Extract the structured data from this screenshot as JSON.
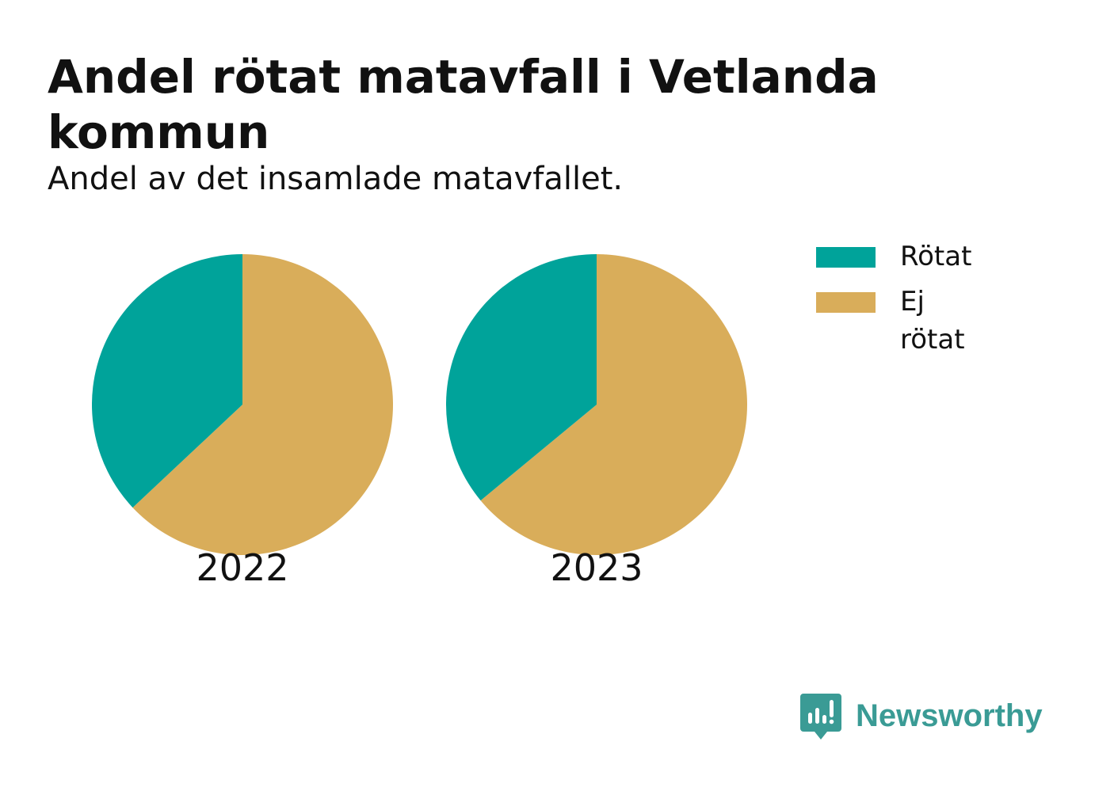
{
  "title": "Andel rötat matavfall i Vetlanda kommun",
  "subtitle": "Andel av det insamlade matavfallet.",
  "brand": {
    "name": "Newsworthy",
    "icon": "newsworthy-logo-icon",
    "color": "#3a9b95"
  },
  "chart_data": {
    "type": "pie",
    "title": "Andel rötat matavfall i Vetlanda kommun",
    "subtitle": "Andel av det insamlade matavfallet.",
    "legend_position": "top-right",
    "series_names": [
      "Rötat",
      "Ej rötat"
    ],
    "colors": {
      "Rötat": "#00a39a",
      "Ej rötat": "#d9ad5a"
    },
    "pies": [
      {
        "label": "2022",
        "values": [
          37,
          63
        ]
      },
      {
        "label": "2023",
        "values": [
          36,
          64
        ]
      }
    ]
  }
}
